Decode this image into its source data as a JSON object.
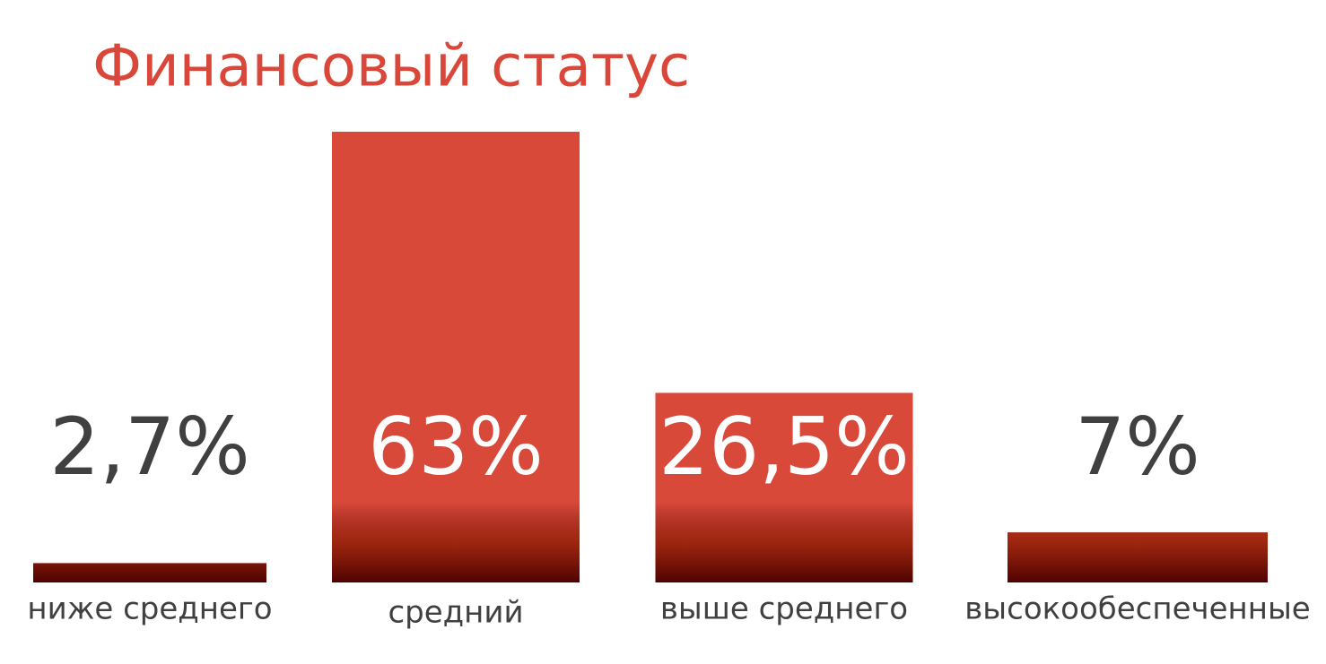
{
  "chart_data": {
    "type": "bar",
    "title": "Финансовый статус",
    "categories": [
      "ниже среднего",
      "средний",
      "выше среднего",
      "высокообеспеченные"
    ],
    "values": [
      2.7,
      63,
      26.5,
      7
    ],
    "value_labels": [
      "2,7%",
      "63%",
      "26,5%",
      "7%"
    ],
    "color": "#d9493a"
  }
}
